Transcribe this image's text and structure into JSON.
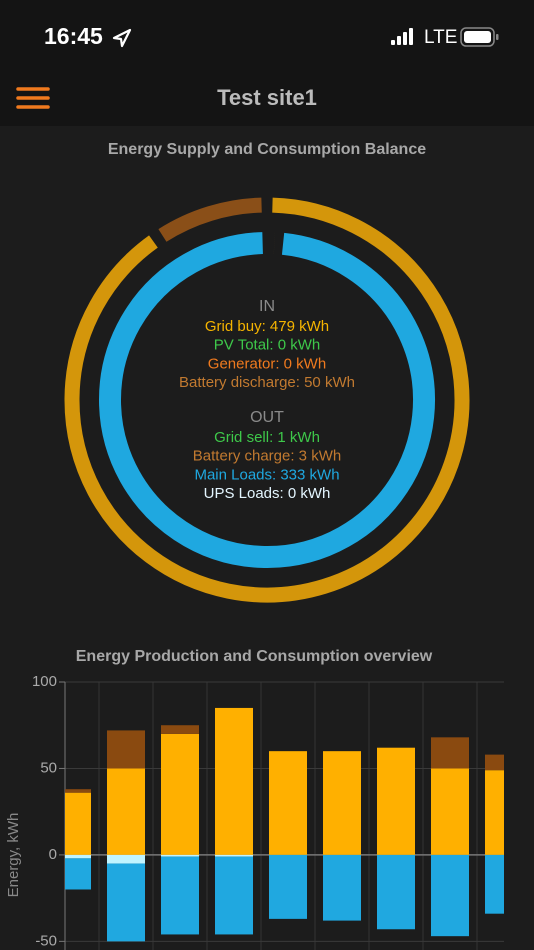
{
  "status_bar": {
    "time": "16:45",
    "network": "LTE"
  },
  "header": {
    "title": "Test site1"
  },
  "chart_data": [
    {
      "type": "donut",
      "title": "Energy Supply and Consumption Balance",
      "rings": [
        {
          "name": "IN",
          "values": [
            479,
            0,
            0,
            50
          ],
          "value_labels": [
            "Grid buy: 479 kWh",
            "PV Total: 0 kWh",
            "Generator: 0 kWh",
            "Battery discharge: 50 kWh"
          ],
          "colors": [
            "#d4960b",
            "#3ec84a",
            "#f07a1e",
            "#8a4f18"
          ],
          "label_colors": [
            "#f5b400",
            "#3ec84a",
            "#f07a1e",
            "#c27a30"
          ]
        },
        {
          "name": "OUT",
          "values": [
            1,
            3,
            333,
            0
          ],
          "value_labels": [
            "Grid sell: 1 kWh",
            "Battery charge: 3 kWh",
            "Main Loads: 333 kWh",
            "UPS Loads: 0 kWh"
          ],
          "colors": [
            "#3ec84a",
            "#c27a30",
            "#1fa8e0",
            "#d8f4ff"
          ],
          "label_colors": [
            "#3ec84a",
            "#c27a30",
            "#1fa8e0",
            "#e4f6ff"
          ]
        }
      ]
    },
    {
      "type": "stacked_bar",
      "title": "Energy Production and Consumption overview",
      "ylabel": "Energy, kWh",
      "categories": [
        null,
        null,
        null,
        null,
        null,
        null,
        null,
        null,
        null
      ],
      "series": [
        {
          "color": "#ffb000",
          "values": [
            36,
            50,
            70,
            85,
            60,
            60,
            62,
            50,
            49
          ]
        },
        {
          "color": "#8a4a10",
          "values": [
            2,
            22,
            5,
            0,
            0,
            0,
            0,
            18,
            9
          ]
        },
        {
          "color": "#c0f4ff",
          "values": [
            -2,
            -5,
            -1,
            -1,
            0,
            0,
            0,
            0,
            0
          ]
        },
        {
          "color": "#20a8e0",
          "values": [
            -18,
            -45,
            -45,
            -45,
            -37,
            -38,
            -43,
            -47,
            -34
          ]
        }
      ],
      "ylim": [
        -55,
        100
      ],
      "yticks": [
        -50,
        0,
        50,
        100
      ],
      "grid": true
    }
  ]
}
